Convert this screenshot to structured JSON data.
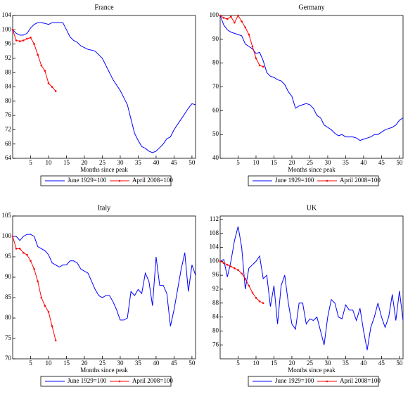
{
  "chart_data": [
    {
      "type": "line",
      "title": "France",
      "x_label": "Months since peak",
      "xlim": [
        0,
        51
      ],
      "xticks": [
        5,
        10,
        15,
        20,
        25,
        30,
        35,
        40,
        45,
        50
      ],
      "ylim": [
        64,
        104
      ],
      "yticks": [
        64,
        68,
        72,
        76,
        80,
        84,
        88,
        92,
        96,
        100,
        104
      ],
      "series": [
        {
          "name": "June 1929=100",
          "color": "#0000ff",
          "marker": false,
          "x": [
            0,
            1,
            2,
            3,
            4,
            5,
            6,
            7,
            8,
            9,
            10,
            11,
            12,
            13,
            14,
            15,
            16,
            17,
            18,
            19,
            20,
            21,
            22,
            23,
            24,
            25,
            26,
            27,
            28,
            29,
            30,
            31,
            32,
            33,
            34,
            35,
            36,
            37,
            38,
            39,
            40,
            41,
            42,
            43,
            44,
            45,
            46,
            47,
            48,
            49,
            50,
            51
          ],
          "values": [
            100,
            99,
            98.5,
            98.5,
            99,
            100.5,
            101.5,
            102,
            102,
            101.8,
            101.5,
            102,
            102,
            102,
            102,
            100,
            98,
            97,
            96.5,
            95.5,
            95,
            94.5,
            94.3,
            94,
            93,
            92,
            90,
            88,
            86,
            84.5,
            83,
            81,
            79,
            75,
            71,
            69,
            67.3,
            66.8,
            66,
            65.6,
            66,
            67,
            68,
            69.5,
            70,
            72,
            73.5,
            75,
            76.5,
            78,
            79.3,
            79
          ]
        },
        {
          "name": "April 2008=100",
          "color": "#ff0000",
          "marker": true,
          "x": [
            0,
            1,
            2,
            3,
            4,
            5,
            6,
            7,
            8,
            9,
            10,
            11,
            12
          ],
          "values": [
            100,
            97,
            96.8,
            97,
            97.5,
            97.8,
            96,
            93,
            90,
            88.5,
            85,
            84,
            82.8
          ]
        }
      ]
    },
    {
      "type": "line",
      "title": "Germany",
      "x_label": "Months since peak",
      "xlim": [
        0,
        51
      ],
      "xticks": [
        5,
        10,
        15,
        20,
        25,
        30,
        35,
        40,
        45,
        50
      ],
      "ylim": [
        40,
        100
      ],
      "yticks": [
        40,
        50,
        60,
        70,
        80,
        90,
        100
      ],
      "series": [
        {
          "name": "June 1929=100",
          "color": "#0000ff",
          "marker": false,
          "x": [
            0,
            1,
            2,
            3,
            4,
            5,
            6,
            7,
            8,
            9,
            10,
            11,
            12,
            13,
            14,
            15,
            16,
            17,
            18,
            19,
            20,
            21,
            22,
            23,
            24,
            25,
            26,
            27,
            28,
            29,
            30,
            31,
            32,
            33,
            34,
            35,
            36,
            37,
            38,
            39,
            40,
            41,
            42,
            43,
            44,
            45,
            46,
            47,
            48,
            49,
            50,
            51
          ],
          "values": [
            100,
            96,
            94,
            93,
            92.5,
            92,
            91.5,
            88,
            87,
            86,
            84,
            84.5,
            81,
            76,
            74.5,
            74,
            73,
            72.5,
            71,
            68,
            66,
            61,
            62,
            62.5,
            63,
            62.5,
            61,
            58,
            57,
            54,
            53,
            52,
            50.5,
            49.5,
            50,
            49,
            49,
            49,
            48.5,
            47.5,
            48,
            48.5,
            49,
            50,
            50,
            51,
            52,
            52.5,
            53,
            54,
            56,
            57
          ]
        },
        {
          "name": "April 2008=100",
          "color": "#ff0000",
          "marker": true,
          "x": [
            0,
            1,
            2,
            3,
            4,
            5,
            6,
            7,
            8,
            9,
            10,
            11,
            12
          ],
          "values": [
            100,
            99,
            98.5,
            99.5,
            97,
            100,
            97.5,
            95,
            92,
            87,
            82,
            79,
            78.5
          ]
        }
      ]
    },
    {
      "type": "line",
      "title": "Italy",
      "x_label": "Months since peak",
      "xlim": [
        0,
        51
      ],
      "xticks": [
        5,
        10,
        15,
        20,
        25,
        30,
        35,
        40,
        45,
        50
      ],
      "ylim": [
        70,
        105
      ],
      "yticks": [
        70,
        75,
        80,
        85,
        90,
        95,
        100,
        105
      ],
      "series": [
        {
          "name": "June 1929=100",
          "color": "#0000ff",
          "marker": false,
          "x": [
            0,
            1,
            2,
            3,
            4,
            5,
            6,
            7,
            8,
            9,
            10,
            11,
            12,
            13,
            14,
            15,
            16,
            17,
            18,
            19,
            20,
            21,
            22,
            23,
            24,
            25,
            26,
            27,
            28,
            29,
            30,
            31,
            32,
            33,
            34,
            35,
            36,
            37,
            38,
            39,
            40,
            41,
            42,
            43,
            44,
            45,
            46,
            47,
            48,
            49,
            50,
            51
          ],
          "values": [
            100,
            100,
            99,
            100,
            100.5,
            100.5,
            100,
            97.5,
            97,
            96.5,
            95.5,
            93.5,
            93,
            92.5,
            93,
            93,
            94,
            94,
            93.5,
            92,
            91.5,
            91,
            89,
            87,
            85.5,
            85,
            85.5,
            85.5,
            84,
            82,
            79.5,
            79.5,
            80,
            86.5,
            85.5,
            87,
            86,
            91,
            89,
            83,
            95,
            88,
            88,
            86,
            78,
            82,
            87,
            92,
            96,
            86.5,
            93,
            90.5
          ]
        },
        {
          "name": "April 2008=100",
          "color": "#ff0000",
          "marker": true,
          "x": [
            0,
            1,
            2,
            3,
            4,
            5,
            6,
            7,
            8,
            9,
            10,
            11,
            12
          ],
          "values": [
            100,
            97,
            97,
            96,
            95.5,
            94,
            92,
            89,
            85,
            83,
            81.5,
            78,
            74.5
          ]
        }
      ]
    },
    {
      "type": "line",
      "title": "UK",
      "x_label": "Months since peak",
      "xlim": [
        0,
        51
      ],
      "xticks": [
        5,
        10,
        15,
        20,
        25,
        30,
        35,
        40,
        45,
        50
      ],
      "ylim": [
        72,
        113
      ],
      "yticks": [
        76,
        80,
        84,
        88,
        92,
        96,
        100,
        104,
        108,
        112
      ],
      "series": [
        {
          "name": "June 1929=100",
          "color": "#0000ff",
          "marker": false,
          "x": [
            0,
            1,
            2,
            3,
            4,
            5,
            6,
            7,
            8,
            9,
            10,
            11,
            12,
            13,
            14,
            15,
            16,
            17,
            18,
            19,
            20,
            21,
            22,
            23,
            24,
            25,
            26,
            27,
            28,
            29,
            30,
            31,
            32,
            33,
            34,
            35,
            36,
            37,
            38,
            39,
            40,
            41,
            42,
            43,
            44,
            45,
            46,
            47,
            48,
            49,
            50,
            51
          ],
          "values": [
            100,
            100.5,
            95.5,
            100,
            106,
            110,
            104,
            92,
            98,
            99,
            100,
            101.5,
            95,
            96,
            87,
            93,
            82,
            93,
            96,
            88,
            82,
            80.5,
            88,
            88,
            82,
            83.5,
            83,
            84,
            80,
            76,
            84,
            89,
            88,
            84,
            83.5,
            87.5,
            86,
            86,
            83,
            86.5,
            80,
            74.5,
            81,
            84,
            88,
            84,
            81,
            84,
            90.5,
            83,
            91.5,
            83
          ]
        },
        {
          "name": "April 2008=100",
          "color": "#ff0000",
          "marker": true,
          "x": [
            0,
            1,
            2,
            3,
            4,
            5,
            6,
            7,
            8,
            9,
            10,
            11,
            12
          ],
          "values": [
            100,
            99.5,
            99,
            98.5,
            98,
            97.5,
            96.5,
            95,
            93,
            91,
            89.5,
            88.5,
            88
          ]
        }
      ]
    }
  ]
}
